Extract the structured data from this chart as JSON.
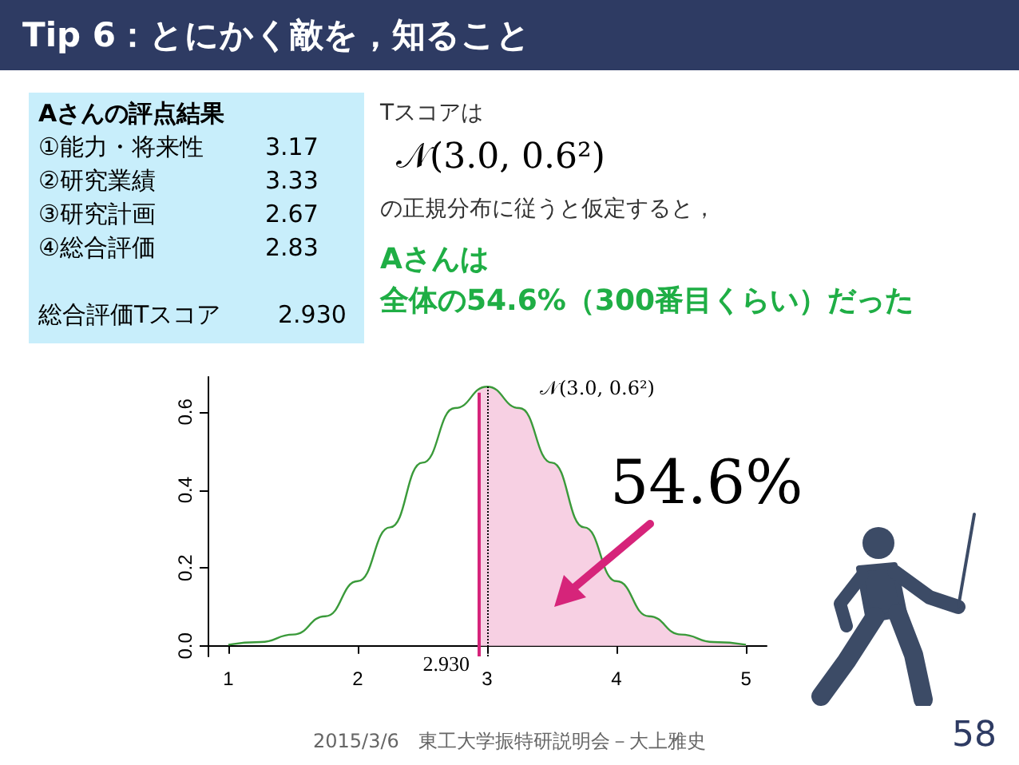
{
  "chart_data": {
    "type": "line",
    "title": "Tip 6：とにかく敵を，知ること",
    "xlim": [
      0.84,
      5.16
    ],
    "ylim": [
      -0.027,
      0.69
    ],
    "xticks": [
      1,
      2,
      3,
      4,
      5
    ],
    "yticks": [
      {
        "value": 0,
        "label": "0.0"
      },
      {
        "value": 0.2,
        "label": "0.2"
      },
      {
        "value": 0.4,
        "label": "0.4"
      },
      {
        "value": 0.6,
        "label": "0.6"
      }
    ],
    "marker": "none",
    "series": [
      {
        "type": "area",
        "color": "#f7d0e3",
        "x": [
          2.93,
          3,
          3.25,
          3.5,
          3.75,
          4,
          4.25,
          4.5,
          4.75,
          5
        ],
        "values": [
          0.661,
          0.665,
          0.61,
          0.47,
          0.304,
          0.166,
          0.076,
          0.029,
          0.01,
          0.003
        ]
      },
      {
        "color": "#3a9a3a",
        "x": [
          1,
          1.25,
          1.5,
          1.75,
          2,
          2.25,
          2.5,
          2.75,
          3,
          3.25,
          3.5,
          3.75,
          4,
          4.25,
          4.5,
          4.75,
          5
        ],
        "values": [
          0.003,
          0.01,
          0.029,
          0.076,
          0.166,
          0.304,
          0.47,
          0.61,
          0.665,
          0.61,
          0.47,
          0.304,
          0.166,
          0.076,
          0.029,
          0.01,
          0.003
        ]
      }
    ],
    "ref_lines": [
      {
        "axis": "x",
        "value": 2.93,
        "label": "2.930",
        "color": "#d6247a"
      },
      {
        "axis": "x",
        "value": 3,
        "color": "#000000",
        "line_style": "dotted"
      }
    ],
    "annotations": [
      "𝒩(3.0, 0.6²)",
      "54.6%",
      "Aさんの評点結果",
      "①能力・将来性",
      "3.17",
      "②研究業績",
      "3.33",
      "③研究計画",
      "2.67",
      "④総合評価",
      "2.83",
      "総合評価Tスコア",
      "2.930",
      "Tスコアは",
      "𝒩(3.0, 0.6²)",
      "の正規分布に従うと仮定すると，",
      "Aさんは",
      "全体の54.6%（300番目くらい）だった",
      "2015/3/6　東工大学振特研説明会－大上雅史",
      "58"
    ]
  }
}
